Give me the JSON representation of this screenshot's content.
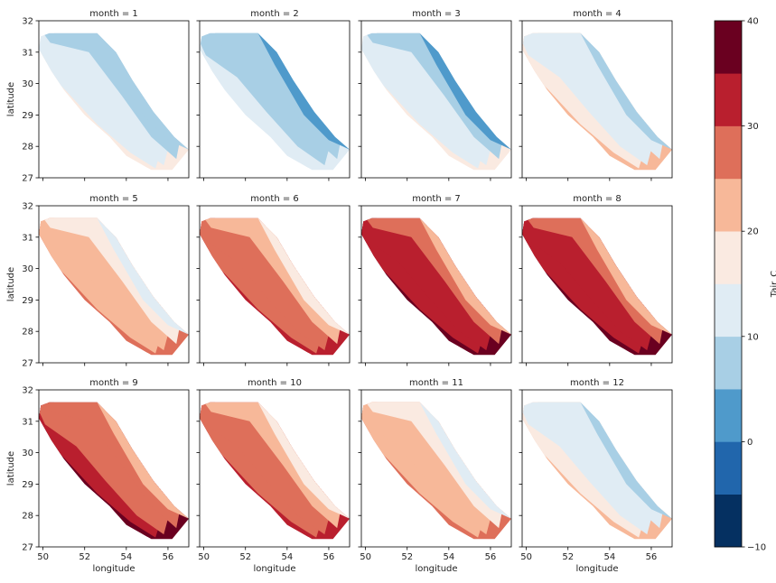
{
  "chart_data": {
    "type": "heatmap",
    "layout": "facet-grid 3 rows x 4 columns",
    "facet_title_prefix": "month = ",
    "facets": [
      1,
      2,
      3,
      4,
      5,
      6,
      7,
      8,
      9,
      10,
      11,
      12
    ],
    "xlabel": "longitude",
    "ylabel": "latitude",
    "xlim": [
      49.8,
      57.0
    ],
    "ylim": [
      27.0,
      32.0
    ],
    "xticks": [
      50,
      52,
      54,
      56
    ],
    "yticks": [
      27,
      28,
      29,
      30,
      31,
      32
    ],
    "colorbar": {
      "label": "Tair_C",
      "min": -10,
      "max": 40,
      "ticks": [
        -10,
        0,
        10,
        20,
        30,
        40
      ],
      "levels": [
        -10,
        -5,
        0,
        5,
        10,
        15,
        20,
        25,
        30,
        35,
        40
      ],
      "colors": [
        "#053061",
        "#2166ac",
        "#4393c3",
        "#92c5de",
        "#d1e5f0",
        "#f7f7f7",
        "#fddbc7",
        "#f4a582",
        "#d6604d",
        "#b2182b",
        "#67001f"
      ],
      "display_colors": [
        "#053061",
        "#2166ac",
        "#4f9acb",
        "#a8cfe5",
        "#e0ecf4",
        "#faeae1",
        "#f7b899",
        "#de6f5a",
        "#b91f2e",
        "#6a0020"
      ]
    },
    "region_outline_lonlat": [
      [
        50.3,
        31.6
      ],
      [
        52.6,
        31.6
      ],
      [
        53.5,
        31.0
      ],
      [
        54.3,
        30.1
      ],
      [
        55.3,
        29.1
      ],
      [
        56.3,
        28.3
      ],
      [
        57.0,
        27.9
      ],
      [
        56.2,
        27.25
      ],
      [
        55.2,
        27.25
      ],
      [
        54.0,
        27.7
      ],
      [
        53.2,
        28.3
      ],
      [
        52.0,
        29.0
      ],
      [
        51.0,
        29.8
      ],
      [
        50.4,
        30.4
      ],
      [
        49.8,
        31.1
      ],
      [
        49.9,
        31.5
      ]
    ],
    "bands_lonlat": [
      [
        [
          50.55,
          31.6
        ],
        [
          52.6,
          31.6
        ],
        [
          53.4,
          30.6
        ],
        [
          54.8,
          29.0
        ],
        [
          56.0,
          28.2
        ],
        [
          57.0,
          27.9
        ]
      ],
      [
        [
          50.35,
          31.3
        ],
        [
          52.2,
          31.0
        ],
        [
          53.8,
          29.6
        ],
        [
          55.2,
          28.3
        ],
        [
          56.4,
          27.6
        ]
      ],
      [
        [
          50.1,
          30.9
        ],
        [
          51.6,
          30.2
        ],
        [
          53.0,
          29.1
        ],
        [
          54.5,
          28.0
        ],
        [
          55.8,
          27.4
        ]
      ],
      [
        [
          49.9,
          30.6
        ],
        [
          51.2,
          29.7
        ],
        [
          52.6,
          28.7
        ],
        [
          54.2,
          27.8
        ],
        [
          55.4,
          27.3
        ]
      ],
      [
        [
          49.85,
          30.95
        ],
        [
          51.0,
          29.9
        ],
        [
          52.2,
          28.9
        ],
        [
          53.6,
          28.0
        ],
        [
          55.0,
          27.3
        ]
      ]
    ],
    "approx_monthly_band_values_C": [
      {
        "month": 1,
        "values": [
          5.5,
          6.5,
          12,
          14,
          17
        ]
      },
      {
        "month": 2,
        "values": [
          3,
          6.5,
          9.5,
          12,
          14
        ]
      },
      {
        "month": 3,
        "values": [
          3,
          7.5,
          11,
          14,
          18
        ]
      },
      {
        "month": 4,
        "values": [
          8.5,
          11,
          14,
          17,
          22
        ]
      },
      {
        "month": 5,
        "values": [
          12,
          17,
          21,
          23,
          25
        ]
      },
      {
        "month": 6,
        "values": [
          19,
          23,
          27,
          28,
          32
        ]
      },
      {
        "month": 7,
        "values": [
          22,
          27,
          30,
          32,
          35
        ]
      },
      {
        "month": 8,
        "values": [
          22,
          28,
          30,
          32,
          36
        ]
      },
      {
        "month": 9,
        "values": [
          22,
          27,
          29,
          32,
          35
        ]
      },
      {
        "month": 10,
        "values": [
          17,
          22,
          25,
          28,
          32
        ]
      },
      {
        "month": 11,
        "values": [
          12,
          17,
          21,
          23,
          26
        ]
      },
      {
        "month": 12,
        "values": [
          6.5,
          11,
          14,
          17,
          21
        ]
      }
    ]
  }
}
